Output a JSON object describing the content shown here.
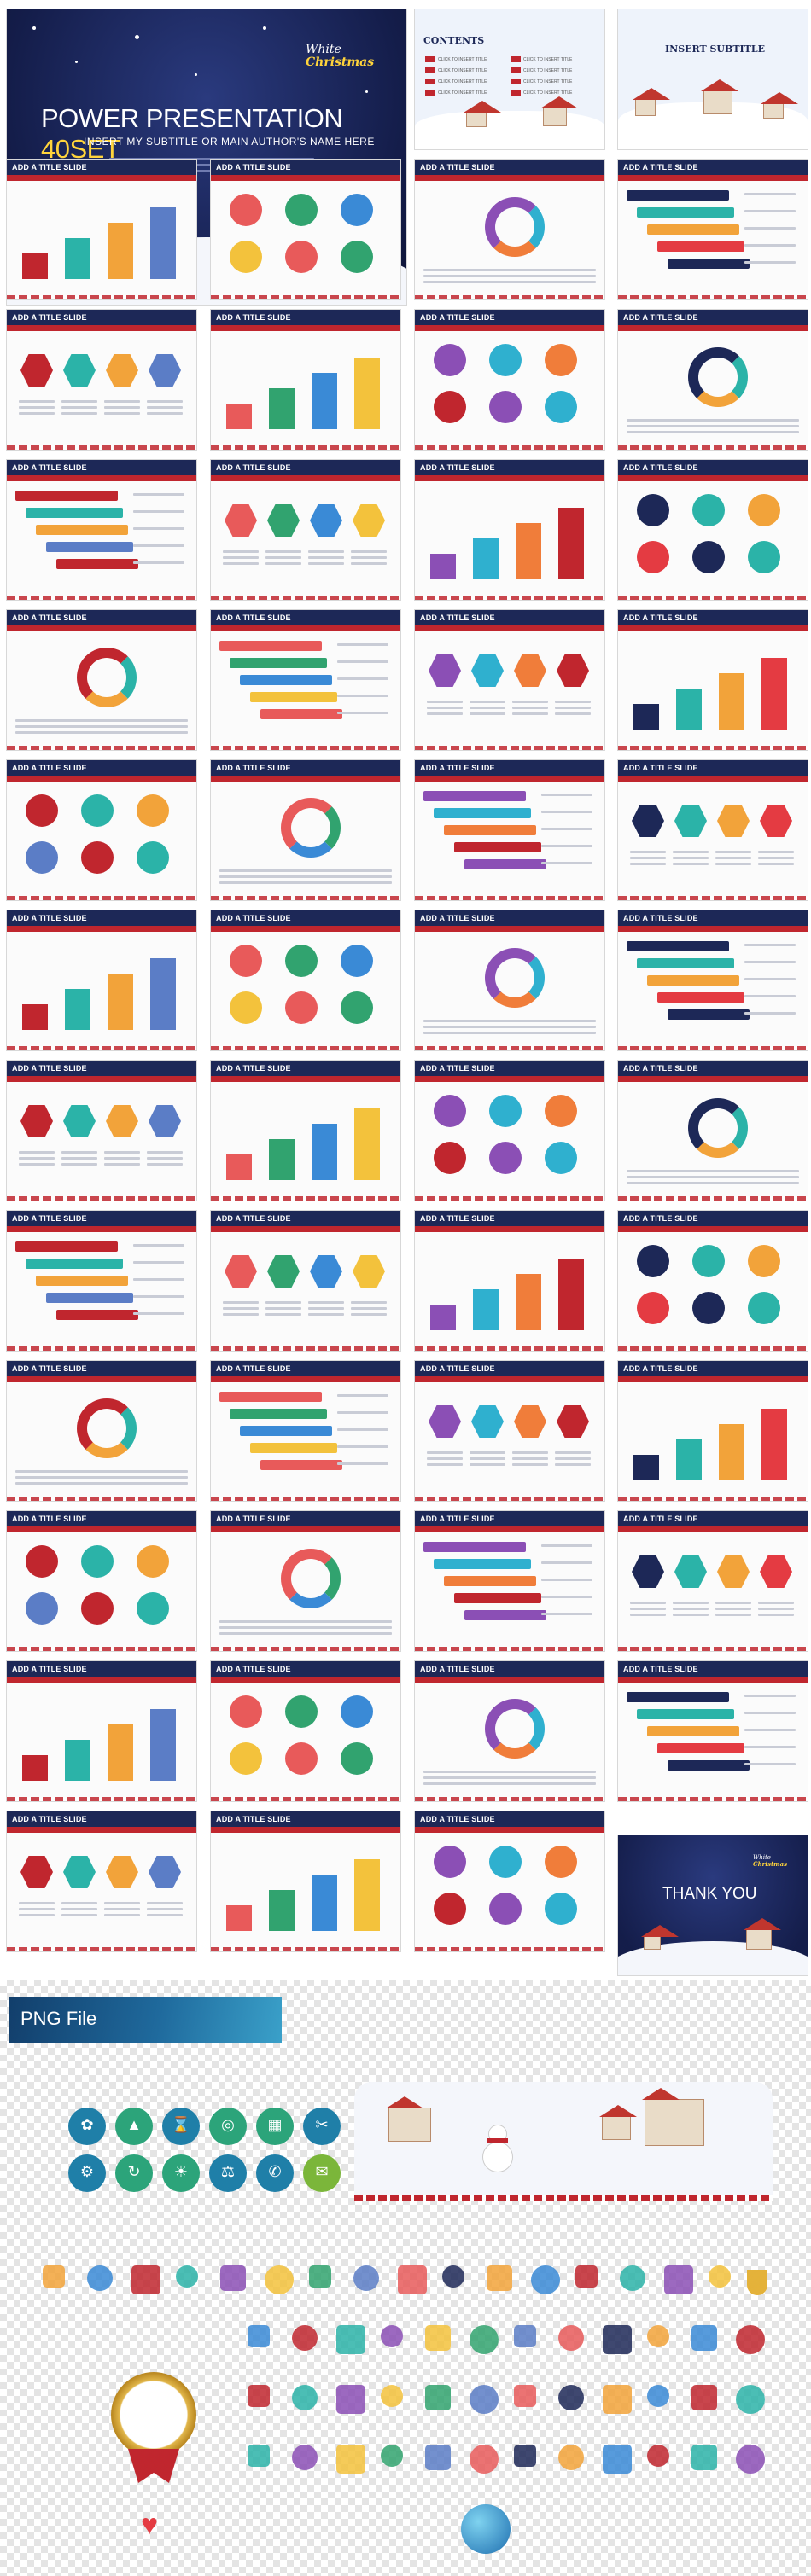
{
  "cover": {
    "title_a": "POWER PRESENTATION",
    "title_b": "40SET",
    "subtitle": "INSERT MY SUBTITLE OR MAIN AUTHOR'S NAME HERE",
    "xmas_a": "White",
    "xmas_b": "Christmas"
  },
  "contents": {
    "title": "CONTENTS",
    "items": [
      "CLICK TO INSERT TITLE",
      "CLICK TO INSERT TITLE",
      "CLICK TO INSERT TITLE",
      "CLICK TO INSERT TITLE",
      "CLICK TO INSERT TITLE",
      "CLICK TO INSERT TITLE",
      "CLICK TO INSERT TITLE",
      "CLICK TO INSERT TITLE"
    ]
  },
  "insert_subtitle": {
    "title": "INSERT SUBTITLE"
  },
  "slide_bar_label": "ADD A TITLE SLIDE",
  "thankyou": {
    "title": "THANK YOU",
    "xmas_a": "White",
    "xmas_b": "Christmas"
  },
  "png_section": {
    "banner": "PNG File"
  },
  "colors": {
    "navy": "#1d2857",
    "red": "#c0262e",
    "gold": "#ffd43b",
    "teal": "#2bb3a8"
  }
}
